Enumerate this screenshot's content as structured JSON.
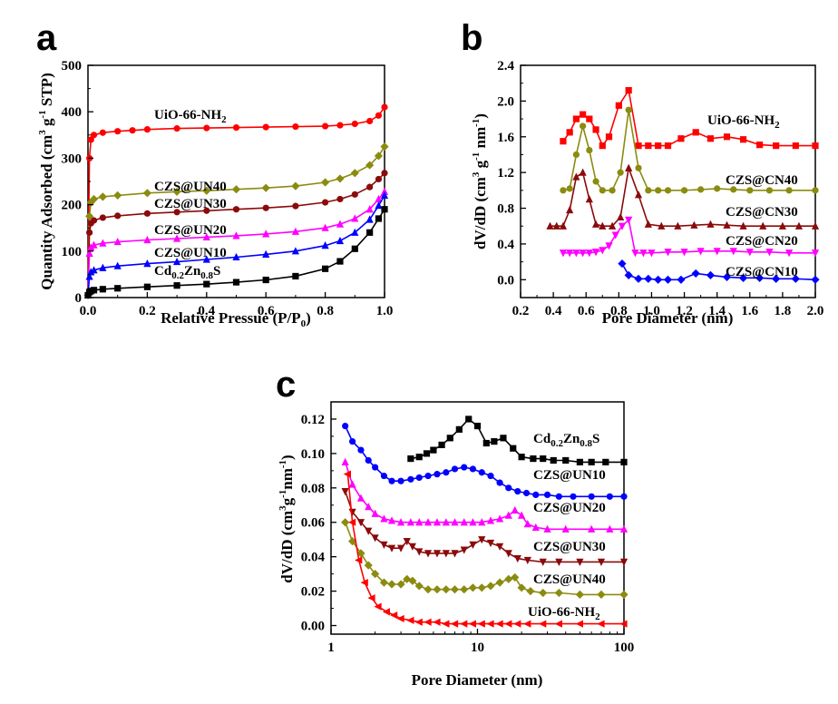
{
  "chart_data": [
    {
      "panel": "a",
      "type": "line",
      "xlabel": "Relative Pressue (P/P0)",
      "ylabel": "Quantity Adsorbed (cm3 g-1 STP)",
      "xlim": [
        0.0,
        1.0
      ],
      "ylim": [
        0,
        500
      ],
      "xticks": [
        "0.0",
        "0.2",
        "0.4",
        "0.6",
        "0.8",
        "1.0"
      ],
      "yticks": [
        "0",
        "100",
        "200",
        "300",
        "400",
        "500"
      ],
      "grid": false,
      "series": [
        {
          "name": "UiO-66-NH2",
          "color": "#ff0000",
          "marker": "circle",
          "x": [
            0.0,
            0.005,
            0.01,
            0.02,
            0.05,
            0.1,
            0.15,
            0.2,
            0.3,
            0.4,
            0.5,
            0.6,
            0.7,
            0.8,
            0.85,
            0.9,
            0.95,
            0.98,
            1.0
          ],
          "y": [
            5,
            300,
            340,
            350,
            355,
            358,
            360,
            362,
            364,
            365,
            366,
            367,
            368,
            369,
            371,
            374,
            380,
            392,
            410
          ]
        },
        {
          "name": "CZS@UN40",
          "color": "#8b8b0f",
          "marker": "diamond",
          "x": [
            0.0,
            0.005,
            0.01,
            0.02,
            0.05,
            0.1,
            0.2,
            0.3,
            0.4,
            0.5,
            0.6,
            0.7,
            0.8,
            0.85,
            0.9,
            0.95,
            0.98,
            1.0
          ],
          "y": [
            5,
            175,
            205,
            212,
            217,
            220,
            225,
            228,
            230,
            233,
            236,
            240,
            248,
            256,
            268,
            285,
            305,
            325
          ]
        },
        {
          "name": "CZS@UN30",
          "color": "#8b0a0a",
          "marker": "circle",
          "x": [
            0.0,
            0.005,
            0.01,
            0.02,
            0.05,
            0.1,
            0.2,
            0.3,
            0.4,
            0.5,
            0.6,
            0.7,
            0.8,
            0.85,
            0.9,
            0.95,
            0.98,
            1.0
          ],
          "y": [
            5,
            140,
            160,
            166,
            172,
            176,
            181,
            184,
            187,
            190,
            193,
            197,
            205,
            212,
            222,
            238,
            255,
            268
          ]
        },
        {
          "name": "CZS@UN20",
          "color": "#ff00ff",
          "marker": "triangle",
          "x": [
            0.0,
            0.005,
            0.01,
            0.02,
            0.05,
            0.1,
            0.2,
            0.3,
            0.4,
            0.5,
            0.6,
            0.7,
            0.8,
            0.85,
            0.9,
            0.95,
            0.98,
            1.0
          ],
          "y": [
            5,
            95,
            108,
            113,
            117,
            120,
            124,
            127,
            130,
            133,
            137,
            142,
            150,
            158,
            170,
            190,
            212,
            228
          ]
        },
        {
          "name": "CZS@UN10",
          "color": "#0000ff",
          "marker": "triangle",
          "x": [
            0.0,
            0.005,
            0.01,
            0.02,
            0.05,
            0.1,
            0.2,
            0.3,
            0.4,
            0.5,
            0.6,
            0.7,
            0.8,
            0.85,
            0.9,
            0.95,
            0.98,
            1.0
          ],
          "y": [
            5,
            45,
            55,
            59,
            64,
            68,
            73,
            77,
            82,
            87,
            93,
            100,
            112,
            122,
            140,
            168,
            198,
            220
          ]
        },
        {
          "name": "Cd0.2Zn0.8S",
          "color": "#000000",
          "marker": "square",
          "x": [
            0.0,
            0.005,
            0.01,
            0.02,
            0.05,
            0.1,
            0.2,
            0.3,
            0.4,
            0.5,
            0.6,
            0.7,
            0.8,
            0.85,
            0.9,
            0.95,
            0.98,
            1.0
          ],
          "y": [
            5,
            12,
            14,
            16,
            18,
            20,
            23,
            26,
            29,
            33,
            38,
            46,
            62,
            78,
            105,
            140,
            170,
            190
          ]
        }
      ]
    },
    {
      "panel": "b",
      "type": "line",
      "xlabel": "Pore Diameter (nm)",
      "ylabel": "dV/dD (cm3 g-1 nm-1)",
      "xlim": [
        0.2,
        2.0
      ],
      "ylim": [
        -0.2,
        2.4
      ],
      "xticks": [
        "0.2",
        "0.4",
        "0.6",
        "0.8",
        "1.0",
        "1.2",
        "1.4",
        "1.6",
        "1.8",
        "2.0"
      ],
      "yticks": [
        "0.0",
        "0.4",
        "0.8",
        "1.2",
        "1.6",
        "2.0",
        "2.4"
      ],
      "grid": false,
      "series": [
        {
          "name": "UiO-66-NH2",
          "color": "#ff0000",
          "marker": "square",
          "x": [
            0.46,
            0.5,
            0.54,
            0.58,
            0.62,
            0.66,
            0.7,
            0.74,
            0.8,
            0.86,
            0.92,
            0.98,
            1.04,
            1.1,
            1.18,
            1.27,
            1.36,
            1.46,
            1.56,
            1.66,
            1.76,
            1.88,
            2.0
          ],
          "y": [
            1.55,
            1.65,
            1.8,
            1.85,
            1.8,
            1.68,
            1.5,
            1.6,
            1.95,
            2.12,
            1.5,
            1.5,
            1.5,
            1.5,
            1.58,
            1.65,
            1.58,
            1.6,
            1.57,
            1.51,
            1.5,
            1.5,
            1.5
          ]
        },
        {
          "name": "CZS@CN40",
          "color": "#8b8b0f",
          "marker": "circle",
          "x": [
            0.46,
            0.5,
            0.54,
            0.58,
            0.62,
            0.66,
            0.7,
            0.76,
            0.81,
            0.86,
            0.92,
            0.98,
            1.04,
            1.1,
            1.2,
            1.3,
            1.4,
            1.5,
            1.6,
            1.72,
            1.84,
            2.0
          ],
          "y": [
            1.0,
            1.02,
            1.4,
            1.72,
            1.45,
            1.1,
            1.0,
            1.0,
            1.2,
            1.9,
            1.25,
            1.0,
            1.0,
            1.0,
            1.0,
            1.01,
            1.02,
            1.01,
            1.0,
            1.0,
            1.0,
            1.0
          ]
        },
        {
          "name": "CZS@CN30",
          "color": "#8b0a0a",
          "marker": "triangle",
          "x": [
            0.38,
            0.42,
            0.46,
            0.5,
            0.54,
            0.58,
            0.62,
            0.66,
            0.7,
            0.76,
            0.81,
            0.86,
            0.92,
            0.98,
            1.06,
            1.16,
            1.26,
            1.36,
            1.46,
            1.56,
            1.68,
            1.8,
            1.9,
            2.0
          ],
          "y": [
            0.6,
            0.6,
            0.6,
            0.78,
            1.15,
            1.2,
            0.9,
            0.62,
            0.6,
            0.6,
            0.7,
            1.25,
            0.95,
            0.62,
            0.6,
            0.6,
            0.61,
            0.62,
            0.61,
            0.6,
            0.6,
            0.6,
            0.6,
            0.6
          ]
        },
        {
          "name": "CZS@CN20",
          "color": "#ff00ff",
          "marker": "triangle-down",
          "x": [
            0.46,
            0.5,
            0.54,
            0.58,
            0.62,
            0.66,
            0.7,
            0.74,
            0.78,
            0.82,
            0.86,
            0.9,
            0.95,
            1.0,
            1.1,
            1.2,
            1.3,
            1.4,
            1.5,
            1.6,
            1.72,
            1.84,
            2.0
          ],
          "y": [
            0.3,
            0.3,
            0.3,
            0.3,
            0.3,
            0.31,
            0.33,
            0.38,
            0.5,
            0.6,
            0.67,
            0.3,
            0.3,
            0.3,
            0.31,
            0.31,
            0.32,
            0.32,
            0.32,
            0.31,
            0.31,
            0.3,
            0.3
          ]
        },
        {
          "name": "CZS@CN10",
          "color": "#0000ff",
          "marker": "diamond",
          "x": [
            0.82,
            0.86,
            0.92,
            0.98,
            1.04,
            1.1,
            1.18,
            1.27,
            1.36,
            1.46,
            1.56,
            1.66,
            1.76,
            1.88,
            2.0
          ],
          "y": [
            0.18,
            0.05,
            0.01,
            0.01,
            0.0,
            0.0,
            0.0,
            0.07,
            0.05,
            0.03,
            0.02,
            0.02,
            0.01,
            0.01,
            0.0
          ]
        }
      ]
    },
    {
      "panel": "c",
      "type": "line",
      "xscale": "log",
      "xlabel": "Pore Diameter (nm)",
      "ylabel": "dV/dD (cm3 g-1 nm-1)",
      "xlim": [
        1,
        100
      ],
      "ylim": [
        -0.005,
        0.13
      ],
      "xticks": [
        "1",
        "10",
        "100"
      ],
      "yticks": [
        "0.00",
        "0.02",
        "0.04",
        "0.06",
        "0.08",
        "0.10",
        "0.12"
      ],
      "grid": false,
      "series": [
        {
          "name": "Cd0.2Zn0.8S",
          "color": "#000000",
          "marker": "square",
          "x": [
            3.5,
            4,
            4.5,
            5,
            5.7,
            6.5,
            7.5,
            8.7,
            10,
            11.5,
            13,
            15,
            17.5,
            20,
            24,
            28,
            33,
            40,
            50,
            60,
            75,
            100
          ],
          "y": [
            0.097,
            0.098,
            0.1,
            0.102,
            0.105,
            0.109,
            0.114,
            0.12,
            0.116,
            0.106,
            0.107,
            0.109,
            0.103,
            0.098,
            0.097,
            0.097,
            0.096,
            0.096,
            0.095,
            0.095,
            0.095,
            0.095
          ]
        },
        {
          "name": "CZS@UN10",
          "color": "#0000ff",
          "marker": "circle",
          "x": [
            1.25,
            1.4,
            1.6,
            1.8,
            2.0,
            2.3,
            2.6,
            3.0,
            3.5,
            4,
            4.6,
            5.3,
            6.1,
            7,
            8.1,
            9.3,
            10.7,
            12.3,
            14.2,
            16.3,
            18.8,
            21.6,
            25,
            30,
            36,
            45,
            60,
            80,
            100
          ],
          "y": [
            0.116,
            0.107,
            0.102,
            0.096,
            0.092,
            0.087,
            0.084,
            0.084,
            0.085,
            0.086,
            0.087,
            0.088,
            0.089,
            0.091,
            0.092,
            0.091,
            0.089,
            0.087,
            0.083,
            0.08,
            0.078,
            0.077,
            0.076,
            0.076,
            0.075,
            0.075,
            0.075,
            0.075,
            0.075
          ]
        },
        {
          "name": "CZS@UN20",
          "color": "#ff00ff",
          "marker": "triangle",
          "x": [
            1.25,
            1.4,
            1.6,
            1.8,
            2.0,
            2.3,
            2.6,
            3.0,
            3.5,
            4,
            4.6,
            5.3,
            6.1,
            7,
            8.1,
            9.3,
            10.7,
            12.3,
            14.2,
            16.3,
            18,
            20,
            22,
            25,
            30,
            40,
            60,
            80,
            100
          ],
          "y": [
            0.095,
            0.082,
            0.074,
            0.069,
            0.065,
            0.062,
            0.061,
            0.06,
            0.06,
            0.06,
            0.06,
            0.06,
            0.06,
            0.06,
            0.06,
            0.06,
            0.06,
            0.061,
            0.062,
            0.064,
            0.067,
            0.064,
            0.059,
            0.057,
            0.056,
            0.056,
            0.056,
            0.056,
            0.056
          ]
        },
        {
          "name": "CZS@UN30",
          "color": "#8b0a0a",
          "marker": "triangle-down",
          "x": [
            1.25,
            1.4,
            1.6,
            1.8,
            2.0,
            2.3,
            2.6,
            3.0,
            3.3,
            3.6,
            4,
            4.6,
            5.3,
            6.1,
            7,
            8.1,
            9.3,
            10.7,
            12.3,
            14.2,
            16.3,
            18.8,
            22,
            28,
            36,
            50,
            70,
            100
          ],
          "y": [
            0.078,
            0.066,
            0.06,
            0.055,
            0.051,
            0.047,
            0.045,
            0.045,
            0.049,
            0.046,
            0.043,
            0.042,
            0.042,
            0.042,
            0.042,
            0.044,
            0.047,
            0.05,
            0.048,
            0.046,
            0.042,
            0.039,
            0.038,
            0.037,
            0.037,
            0.037,
            0.037,
            0.037
          ]
        },
        {
          "name": "CZS@UN40",
          "color": "#8b8b0f",
          "marker": "diamond",
          "x": [
            1.25,
            1.4,
            1.6,
            1.8,
            2.0,
            2.3,
            2.6,
            3.0,
            3.3,
            3.6,
            4,
            4.6,
            5.3,
            6.1,
            7,
            8.1,
            9.3,
            10.7,
            12.3,
            14.2,
            16.3,
            18,
            20,
            23,
            28,
            36,
            50,
            70,
            100
          ],
          "y": [
            0.06,
            0.049,
            0.042,
            0.035,
            0.03,
            0.025,
            0.024,
            0.024,
            0.027,
            0.026,
            0.023,
            0.021,
            0.021,
            0.021,
            0.021,
            0.021,
            0.022,
            0.022,
            0.023,
            0.025,
            0.027,
            0.028,
            0.022,
            0.02,
            0.019,
            0.019,
            0.018,
            0.018,
            0.018
          ]
        },
        {
          "name": "UiO-66-NH2",
          "color": "#ff0000",
          "marker": "triangle-left",
          "x": [
            1.3,
            1.4,
            1.55,
            1.7,
            1.9,
            2.1,
            2.4,
            2.7,
            3.0,
            3.5,
            4,
            4.6,
            5.3,
            6.1,
            7,
            8.1,
            9.3,
            10.7,
            12.3,
            14.2,
            16.3,
            18.8,
            22,
            28,
            36,
            50,
            70,
            100
          ],
          "y": [
            0.088,
            0.06,
            0.038,
            0.025,
            0.016,
            0.011,
            0.008,
            0.006,
            0.004,
            0.003,
            0.002,
            0.002,
            0.002,
            0.001,
            0.001,
            0.001,
            0.001,
            0.001,
            0.001,
            0.001,
            0.001,
            0.001,
            0.001,
            0.001,
            0.001,
            0.001,
            0.001,
            0.001
          ]
        }
      ]
    }
  ]
}
